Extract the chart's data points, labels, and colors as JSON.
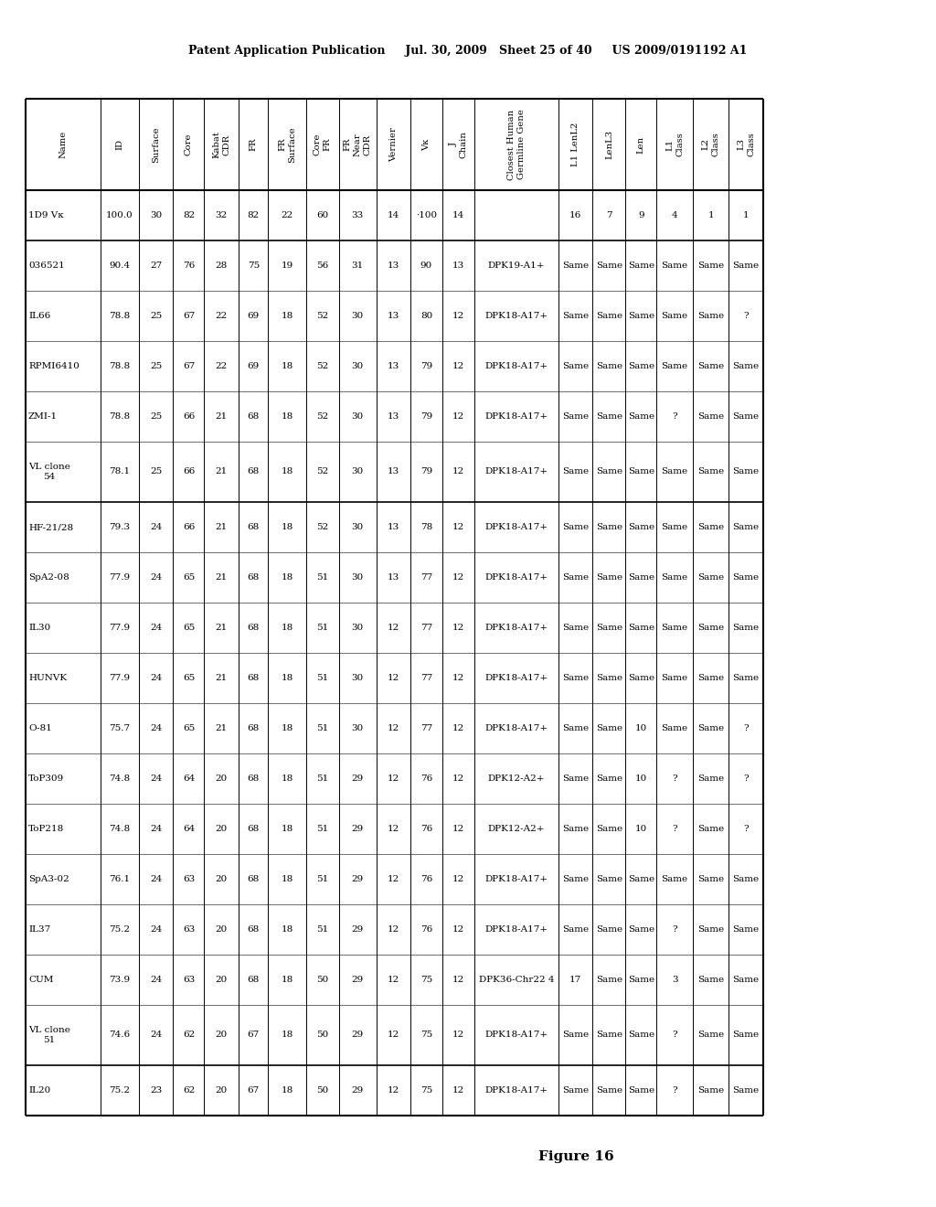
{
  "header_text": "Patent Application Publication     Jul. 30, 2009   Sheet 25 of 40     US 2009/0191192 A1",
  "figure_label": "Figure 16",
  "col_headers_line1": [
    "Name",
    "ID",
    "Surface",
    "Core",
    "Kabat",
    "FR",
    "FR",
    "Core",
    "FR",
    "Vernier",
    "Vκ",
    "J",
    "Closest Human",
    "L1 LenL2",
    "LenL3",
    "Len",
    "L1",
    "L2",
    "L3"
  ],
  "col_headers_line2": [
    "",
    "",
    "",
    "",
    "CDR",
    "",
    "Surface",
    "FR",
    "Near",
    "",
    "",
    "Chain",
    "Germline Gene",
    "",
    "",
    "",
    "Class",
    "Class",
    "Class"
  ],
  "col_headers_line3": [
    "",
    "",
    "",
    "",
    "",
    "",
    "",
    "",
    "CDR",
    "",
    "",
    "",
    "",
    "",
    "",
    "",
    "",
    "",
    ""
  ],
  "rows": [
    [
      "1D9 Vκ",
      "100.0",
      "30",
      "82",
      "32",
      "82",
      "22",
      "60",
      "33",
      "14",
      "·100",
      "14",
      "",
      "16",
      "7",
      "9",
      "4",
      "1",
      "1"
    ],
    [
      "036521",
      "90.4",
      "27",
      "76",
      "28",
      "75",
      "19",
      "56",
      "31",
      "13",
      "90",
      "13",
      "DPK19-A1+",
      "Same",
      "Same",
      "Same",
      "Same",
      "Same",
      "Same"
    ],
    [
      "IL66",
      "78.8",
      "25",
      "67",
      "22",
      "69",
      "18",
      "52",
      "30",
      "13",
      "80",
      "12",
      "DPK18-A17+",
      "Same",
      "Same",
      "Same",
      "Same",
      "Same",
      "?"
    ],
    [
      "RPMI6410",
      "78.8",
      "25",
      "67",
      "22",
      "69",
      "18",
      "52",
      "30",
      "13",
      "79",
      "12",
      "DPK18-A17+",
      "Same",
      "Same",
      "Same",
      "Same",
      "Same",
      "Same"
    ],
    [
      "ZMI-1",
      "78.8",
      "25",
      "66",
      "21",
      "68",
      "18",
      "52",
      "30",
      "13",
      "79",
      "12",
      "DPK18-A17+",
      "Same",
      "Same",
      "Same",
      "?",
      "Same",
      "Same"
    ],
    [
      "VL clone",
      "78.1",
      "25",
      "66",
      "21",
      "68",
      "18",
      "52",
      "30",
      "13",
      "79",
      "12",
      "DPK18-A17+",
      "Same",
      "Same",
      "Same",
      "Same",
      "Same",
      "Same"
    ],
    [
      "54",
      "",
      "",
      "",
      "",
      "",
      "",
      "",
      "",
      "",
      "",
      "",
      "",
      "",
      "",
      "",
      "",
      "",
      ""
    ],
    [
      "HF-21/28",
      "79.3",
      "24",
      "66",
      "21",
      "68",
      "18",
      "52",
      "30",
      "13",
      "78",
      "12",
      "DPK18-A17+",
      "Same",
      "Same",
      "Same",
      "Same",
      "Same",
      "Same"
    ],
    [
      "SpA2-08",
      "77.9",
      "24",
      "65",
      "21",
      "68",
      "18",
      "51",
      "30",
      "13",
      "77",
      "12",
      "DPK18-A17+",
      "Same",
      "Same",
      "Same",
      "Same",
      "Same",
      "Same"
    ],
    [
      "IL30",
      "77.9",
      "24",
      "65",
      "21",
      "68",
      "18",
      "51",
      "30",
      "12",
      "77",
      "12",
      "DPK18-A17+",
      "Same",
      "Same",
      "Same",
      "Same",
      "Same",
      "Same"
    ],
    [
      "HUNVK",
      "77.9",
      "24",
      "65",
      "21",
      "68",
      "18",
      "51",
      "30",
      "12",
      "77",
      "12",
      "DPK18-A17+",
      "Same",
      "Same",
      "Same",
      "Same",
      "Same",
      "Same"
    ],
    [
      "O-81",
      "75.7",
      "24",
      "65",
      "21",
      "68",
      "18",
      "51",
      "30",
      "12",
      "77",
      "12",
      "DPK18-A17+",
      "Same",
      "Same",
      "10",
      "Same",
      "Same",
      "?"
    ],
    [
      "ToP309",
      "74.8",
      "24",
      "64",
      "20",
      "68",
      "18",
      "51",
      "29",
      "12",
      "76",
      "12",
      "DPK12-A2+",
      "Same",
      "Same",
      "10",
      "?",
      "Same",
      "?"
    ],
    [
      "ToP218",
      "74.8",
      "24",
      "64",
      "20",
      "68",
      "18",
      "51",
      "29",
      "12",
      "76",
      "12",
      "DPK12-A2+",
      "Same",
      "Same",
      "10",
      "?",
      "Same",
      "?"
    ],
    [
      "SpA3-02",
      "76.1",
      "24",
      "63",
      "20",
      "68",
      "18",
      "51",
      "29",
      "12",
      "76",
      "12",
      "DPK18-A17+",
      "Same",
      "Same",
      "Same",
      "Same",
      "Same",
      "Same"
    ],
    [
      "IL37",
      "75.2",
      "24",
      "63",
      "20",
      "68",
      "18",
      "51",
      "29",
      "12",
      "76",
      "12",
      "DPK18-A17+",
      "Same",
      "Same",
      "Same",
      "?",
      "Same",
      "Same"
    ],
    [
      "CUM",
      "73.9",
      "24",
      "63",
      "20",
      "68",
      "18",
      "50",
      "29",
      "12",
      "75",
      "12",
      "DPK36-Chr22 4",
      "17",
      "Same",
      "Same",
      "3",
      "Same",
      "Same"
    ],
    [
      "VL clone",
      "74.6",
      "24",
      "62",
      "20",
      "67",
      "18",
      "50",
      "29",
      "12",
      "75",
      "12",
      "DPK18-A17+",
      "Same",
      "Same",
      "Same",
      "?",
      "Same",
      "Same"
    ],
    [
      "51",
      "",
      "",
      "",
      "",
      "",
      "",
      "",
      "",
      "",
      "",
      "",
      "",
      "",
      "",
      "",
      "",
      "",
      ""
    ],
    [
      "IL20",
      "75.2",
      "23",
      "62",
      "20",
      "67",
      "18",
      "50",
      "29",
      "12",
      "75",
      "12",
      "DPK18-A17+",
      "Same",
      "Same",
      "Same",
      "?",
      "Same",
      "Same"
    ]
  ],
  "background_color": "#ffffff",
  "text_color": "#000000"
}
